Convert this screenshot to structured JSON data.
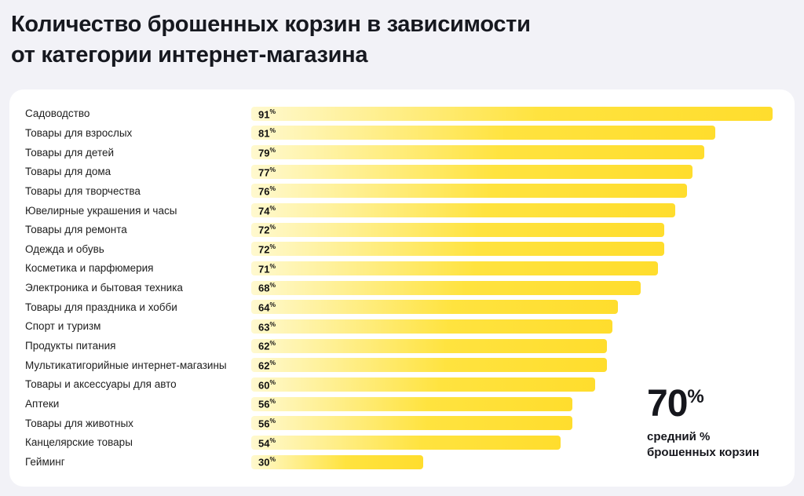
{
  "page": {
    "title_line1": "Количество брошенных корзин в зависимости",
    "title_line2": "от категории интернет-магазина"
  },
  "chart_data": {
    "type": "bar",
    "orientation": "horizontal",
    "title": "Количество брошенных корзин в зависимости от категории интернет-магазина",
    "unit": "%",
    "xlim": [
      0,
      100
    ],
    "grid": false,
    "legend": false,
    "categories": [
      "Садоводство",
      "Товары для взрослых",
      "Товары для детей",
      "Товары для дома",
      "Товары для творчества",
      "Ювелирные украшения и часы",
      "Товары для ремонта",
      "Одежда и обувь",
      "Косметика и парфюмерия",
      "Электроника и бытовая техника",
      "Товары для праздника и хобби",
      "Спорт и туризм",
      "Продукты питания",
      "Мультикатигорийные интернет-магазины",
      "Товары и аксессуары для авто",
      "Аптеки",
      "Товары для животных",
      "Канцелярские товары",
      "Гейминг"
    ],
    "values": [
      91,
      81,
      79,
      77,
      76,
      74,
      72,
      72,
      71,
      68,
      64,
      63,
      62,
      62,
      60,
      56,
      56,
      54,
      30
    ],
    "bar_color_start": "#FFF9CF",
    "bar_color_end": "#FFDD2D",
    "annotation": {
      "value": "70",
      "unit": "%",
      "label_line1": "средний %",
      "label_line2": "брошенных корзин"
    }
  },
  "colors": {
    "background": "#F2F2F7",
    "card": "#FFFFFF",
    "title_text": "#16181F",
    "bar_yellow": "#FFDD2D"
  }
}
